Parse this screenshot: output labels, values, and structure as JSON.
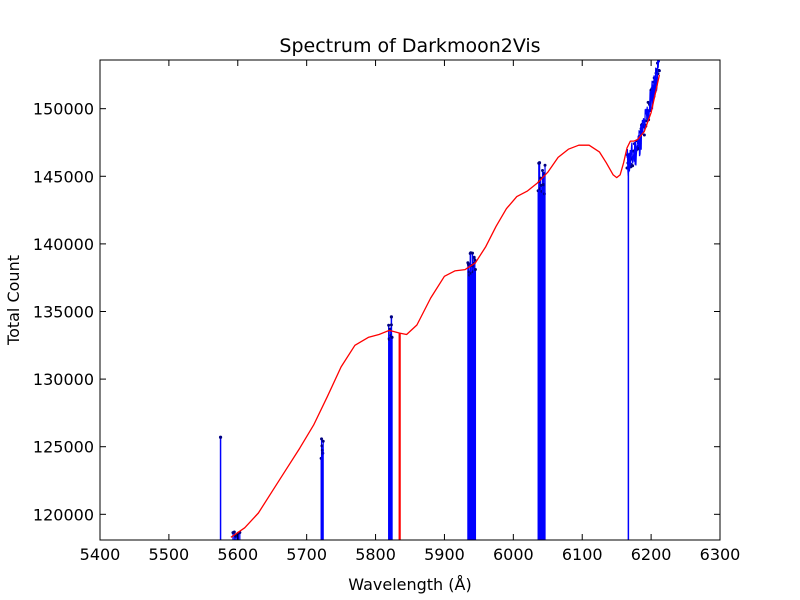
{
  "chart_data": {
    "type": "line",
    "title": "Spectrum of Darkmoon2Vis",
    "xlabel": "Wavelength (Å)",
    "ylabel": "Total Count",
    "xlim": [
      5400,
      6300
    ],
    "ylim": [
      118100,
      153600
    ],
    "x_ticks": [
      5400,
      5500,
      5600,
      5700,
      5800,
      5900,
      6000,
      6100,
      6200,
      6300
    ],
    "x_tick_labels": [
      "5400",
      "5500",
      "5600",
      "5700",
      "5800",
      "5900",
      "6000",
      "6100",
      "6200",
      "6300"
    ],
    "y_ticks": [
      120000,
      125000,
      130000,
      135000,
      140000,
      145000,
      150000
    ],
    "y_tick_labels": [
      "120000",
      "125000",
      "130000",
      "135000",
      "140000",
      "145000",
      "150000"
    ],
    "grid": false,
    "colors": {
      "fit": "#ff0000",
      "data": "#0000ff",
      "marker": "#000080",
      "axes": "#000000"
    },
    "fit_curve": {
      "x": [
        5590,
        5610,
        5630,
        5650,
        5670,
        5690,
        5710,
        5730,
        5750,
        5770,
        5790,
        5805,
        5820,
        5835,
        5845,
        5860,
        5880,
        5900,
        5915,
        5930,
        5945,
        5960,
        5975,
        5990,
        6005,
        6020,
        6035,
        6050,
        6065,
        6080,
        6095,
        6110,
        6125,
        6135,
        6145,
        6150,
        6155,
        6160,
        6165,
        6170,
        6175,
        6180,
        6190,
        6200,
        6212
      ],
      "y": [
        118300,
        119000,
        120100,
        121700,
        123300,
        124900,
        126600,
        128700,
        130900,
        132500,
        133100,
        133300,
        133600,
        133400,
        133300,
        134000,
        136000,
        137600,
        138000,
        138100,
        138600,
        139800,
        141300,
        142600,
        143500,
        143900,
        144500,
        145300,
        146400,
        147000,
        147300,
        147300,
        146800,
        146000,
        145100,
        144900,
        145100,
        146000,
        147100,
        147600,
        147600,
        147700,
        148300,
        149700,
        152500
      ]
    },
    "red_bar": {
      "x": 5835,
      "y": 133400
    },
    "stems": [
      {
        "x": 5575,
        "y": 125700
      },
      {
        "x": 5820,
        "y": 133000
      },
      {
        "x": 5823,
        "y": 134600
      },
      {
        "x": 5935,
        "y": 138500
      },
      {
        "x": 5943,
        "y": 139000
      },
      {
        "x": 6038,
        "y": 146000
      },
      {
        "x": 6044,
        "y": 145200
      },
      {
        "x": 6167,
        "y": 146500
      }
    ],
    "clusters": [
      {
        "x0": 5593,
        "x1": 5603,
        "ymin": 118300,
        "ymax": 119000,
        "n": 6
      },
      {
        "x0": 5721,
        "x1": 5724,
        "ymin": 124000,
        "ymax": 125800,
        "n": 6
      },
      {
        "x0": 5819,
        "x1": 5824,
        "ymin": 132800,
        "ymax": 134600,
        "n": 6
      },
      {
        "x0": 5934,
        "x1": 5945,
        "ymin": 137600,
        "ymax": 139400,
        "n": 14
      },
      {
        "x0": 6036,
        "x1": 6046,
        "ymin": 143500,
        "ymax": 146000,
        "n": 12
      },
      {
        "x0": 6165,
        "x1": 6212,
        "ymin": 146000,
        "ymax": 153500,
        "n": 70
      }
    ]
  }
}
